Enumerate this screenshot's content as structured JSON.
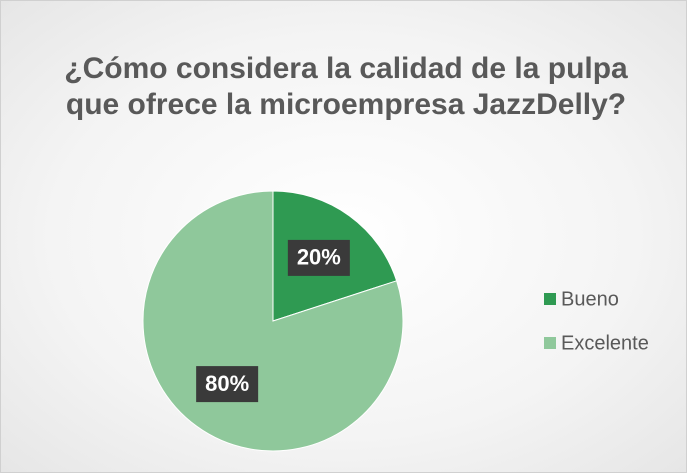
{
  "chart_data": {
    "type": "pie",
    "title": "¿Cómo considera la calidad de la pulpa que ofrece la microempresa JazzDelly?",
    "categories": [
      "Bueno",
      "Excelente"
    ],
    "values": [
      20,
      80
    ],
    "value_labels": [
      "20%",
      "80%"
    ],
    "colors": [
      "#2f9a52",
      "#8fc89b"
    ],
    "legend": "right"
  }
}
